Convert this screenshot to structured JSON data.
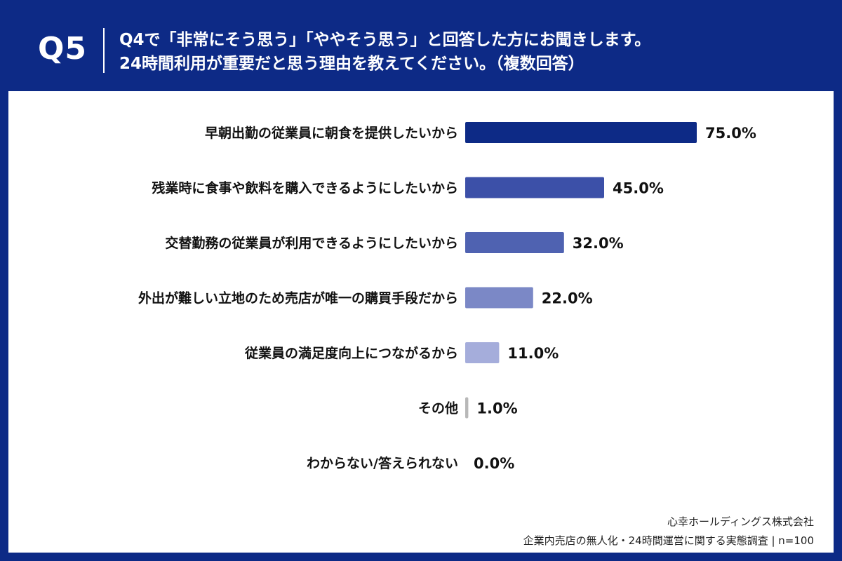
{
  "header": {
    "qnum": "Q5",
    "question_line1": "Q4で「非常にそう思う」「ややそう思う」と回答した方にお聞きします。",
    "question_line2": "24時間利用が重要だと思う理由を教えてください。（複数回答）"
  },
  "footer": {
    "company": "心幸ホールディングス株式会社",
    "survey": "企業内売店の無人化・24時間運営に関する実態調査 | n=100"
  },
  "chart_data": {
    "type": "bar",
    "orientation": "horizontal",
    "categories": [
      "早朝出勤の従業員に朝食を提供したいから",
      "残業時に食事や飲料を購入できるようにしたいから",
      "交替勤務の従業員が利用できるようにしたいから",
      "外出が難しい立地のため売店が唯一の購買手段だから",
      "従業員の満足度向上につながるから",
      "その他",
      "わからない/答えられない"
    ],
    "values": [
      75.0,
      45.0,
      32.0,
      22.0,
      11.0,
      1.0,
      0.0
    ],
    "value_labels": [
      "75.0%",
      "45.0%",
      "32.0%",
      "22.0%",
      "11.0%",
      "1.0%",
      "0.0%"
    ],
    "colors": [
      "#0d2a86",
      "#3c50a8",
      "#4f62b1",
      "#7b88c6",
      "#a5addb",
      "#b8b8b8",
      "#b8b8b8"
    ],
    "xlim": [
      0,
      100
    ],
    "grid": false,
    "legend": "none"
  }
}
